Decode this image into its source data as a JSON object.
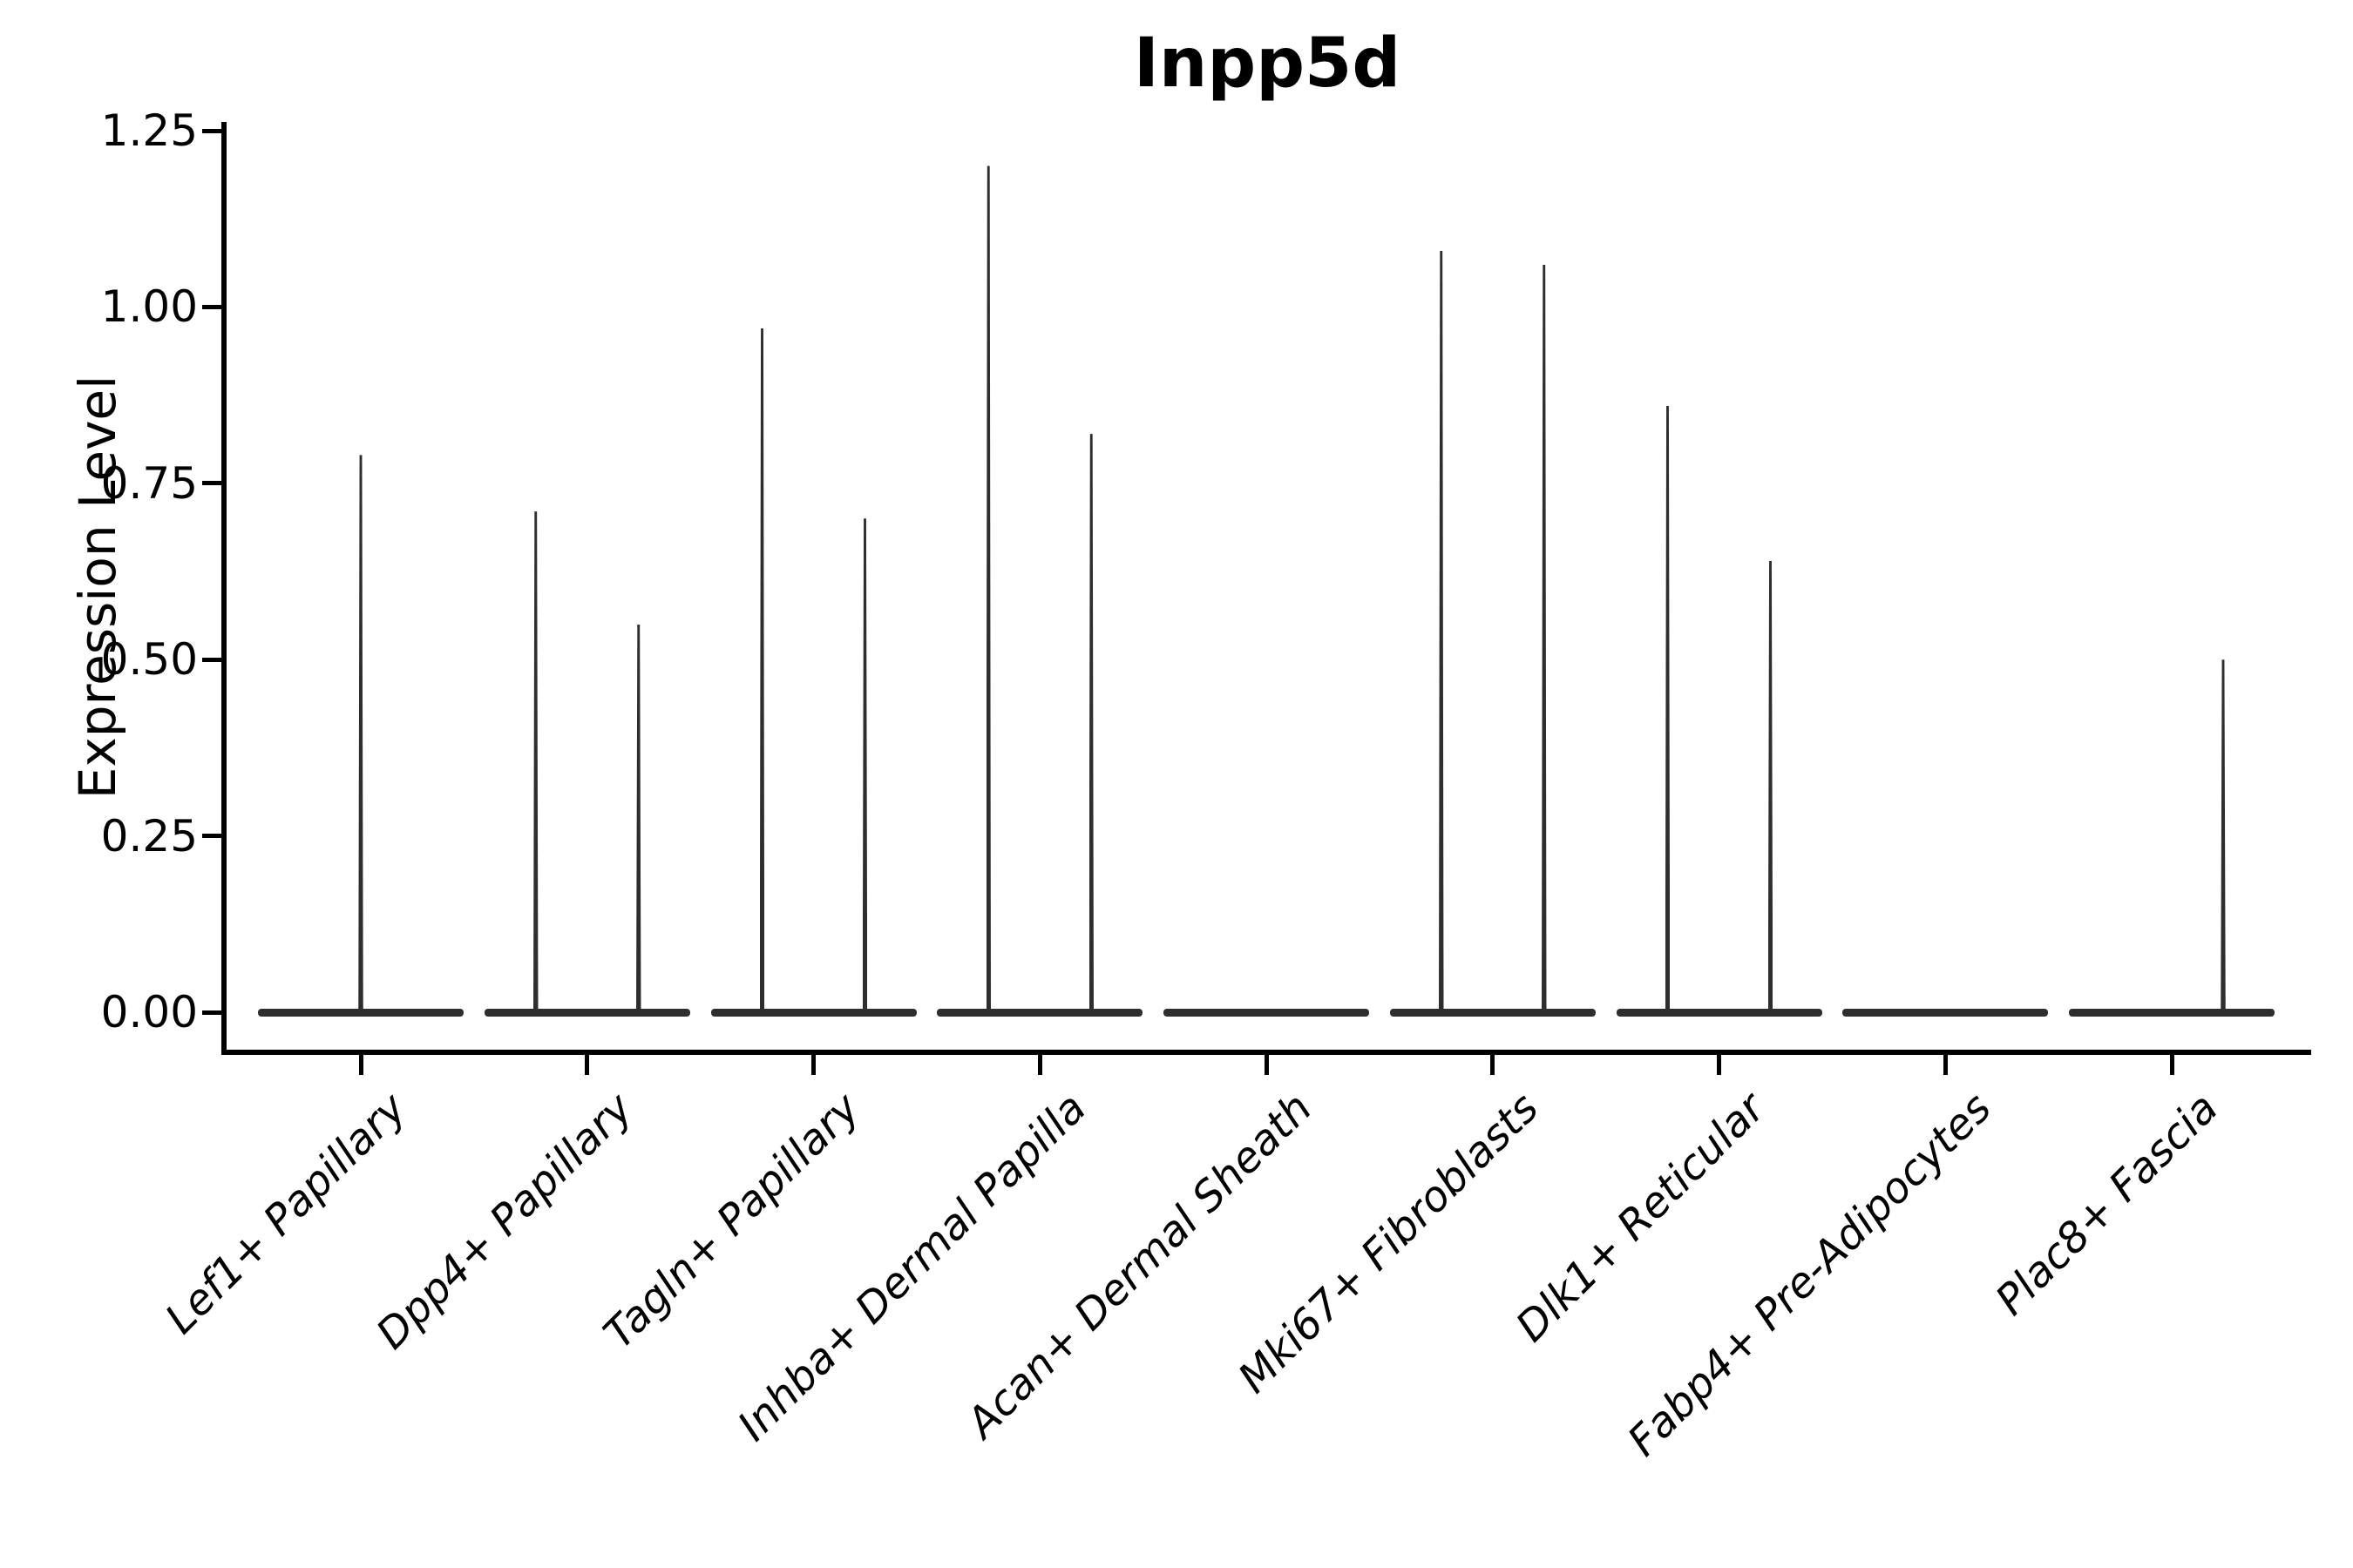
{
  "title": "Inpp5d",
  "y_axis": {
    "label": "Expression Level",
    "tick_labels": [
      "0.00",
      "0.25",
      "0.50",
      "0.75",
      "1.00",
      "1.25"
    ]
  },
  "chart_data": {
    "type": "violin",
    "title": "Inpp5d",
    "xlabel": "",
    "ylabel": "Expression Level",
    "ylim": [
      0,
      1.25
    ],
    "yticks": [
      0,
      0.25,
      0.5,
      0.75,
      1.0,
      1.25
    ],
    "grid": false,
    "legend_position": "none",
    "description": "Stacked-violin style expression plot; every violin has its density mass collapsed at 0 (flat horizontal bar) with thin vertical spikes rising to the maximum expression values of rare expressing cells.",
    "categories": [
      "Lef1+ Papillary",
      "Dpp4+ Papillary",
      "Tagln+ Papillary",
      "Inhba+ Dermal Papilla",
      "Acan+ Dermal Sheath",
      "Mki67+ Fibroblasts",
      "Dlk1+ Reticular",
      "Fabp4+ Pre-Adipocytes",
      "Plac8+ Fascia"
    ],
    "series": [
      {
        "category": "Lef1+ Papillary",
        "zero_mass": true,
        "peaks": [
          {
            "position": "center",
            "max_value": 0.79
          }
        ]
      },
      {
        "category": "Dpp4+ Papillary",
        "zero_mass": true,
        "peaks": [
          {
            "position": "left",
            "max_value": 0.71
          },
          {
            "position": "right",
            "max_value": 0.55
          }
        ]
      },
      {
        "category": "Tagln+ Papillary",
        "zero_mass": true,
        "peaks": [
          {
            "position": "left",
            "max_value": 0.97
          },
          {
            "position": "right",
            "max_value": 0.7
          }
        ]
      },
      {
        "category": "Inhba+ Dermal Papilla",
        "zero_mass": true,
        "peaks": [
          {
            "position": "left",
            "max_value": 1.2
          },
          {
            "position": "right",
            "max_value": 0.82
          }
        ]
      },
      {
        "category": "Acan+ Dermal Sheath",
        "zero_mass": true,
        "peaks": []
      },
      {
        "category": "Mki67+ Fibroblasts",
        "zero_mass": true,
        "peaks": [
          {
            "position": "left",
            "max_value": 1.08
          },
          {
            "position": "right",
            "max_value": 1.06
          }
        ]
      },
      {
        "category": "Dlk1+ Reticular",
        "zero_mass": true,
        "peaks": [
          {
            "position": "left",
            "max_value": 0.86
          },
          {
            "position": "right",
            "max_value": 0.64
          }
        ]
      },
      {
        "category": "Fabp4+ Pre-Adipocytes",
        "zero_mass": true,
        "peaks": []
      },
      {
        "category": "Plac8+ Fascia",
        "zero_mass": true,
        "peaks": [
          {
            "position": "right",
            "max_value": 0.5
          }
        ]
      }
    ]
  },
  "colors": {
    "violin": "#2e2e2e",
    "axis": "#000000",
    "text": "#000000",
    "background": "#ffffff"
  }
}
